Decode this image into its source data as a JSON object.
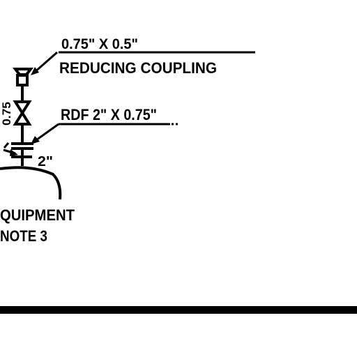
{
  "labels": {
    "callout_1_size": "0.75\" X 0.5\"",
    "callout_1_name": "REDUCING COUPLING",
    "callout_2": "RDF 2\" X 0.75\"",
    "left_pipe_size": "0.75",
    "main_pipe_size": "2\"",
    "equipment_line_1": "QUIPMENT",
    "equipment_line_2": "NOTE 3"
  },
  "colors": {
    "ink": "#000000",
    "paper": "#ffffff"
  }
}
